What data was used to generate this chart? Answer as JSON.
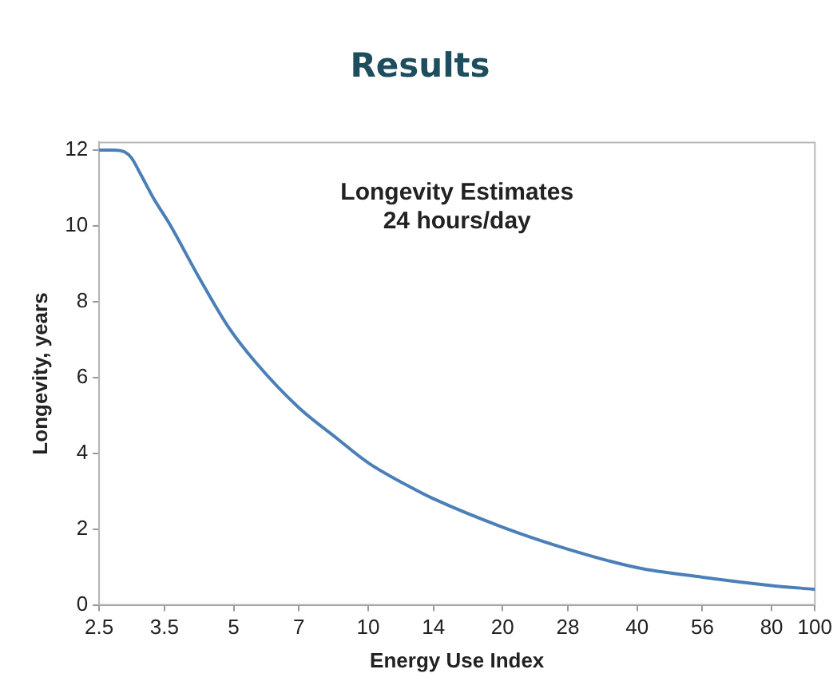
{
  "chart_data": {
    "type": "line",
    "title": "Results",
    "xlabel": "Energy Use Index",
    "ylabel": "Longevity, years",
    "annotations": [
      "Longevity Estimates",
      "24 hours/day"
    ],
    "x": [
      2.5,
      2.7,
      2.85,
      2.95,
      3.1,
      3.3,
      3.59,
      4.2,
      4.86,
      5.6,
      7,
      8.5,
      10,
      12.7,
      14,
      20,
      28,
      40,
      56,
      80,
      100
    ],
    "series": [
      {
        "color": "#4a7fb8",
        "values": [
          12,
          12,
          11.95,
          11.8,
          11.35,
          10.75,
          10.06,
          8.6,
          7.34,
          6.4,
          5.2,
          4.4,
          3.75,
          3.05,
          2.8,
          2.05,
          1.47,
          0.98,
          0.73,
          0.51,
          0.41
        ]
      }
    ],
    "log": "x",
    "xlim": [
      2.5,
      100
    ],
    "xticks": [
      2.5,
      3.5,
      5,
      7,
      10,
      14,
      20,
      28,
      40,
      56,
      80,
      100
    ],
    "ylim": [
      0,
      12.2
    ],
    "yticks": [
      0,
      2,
      4,
      6,
      8,
      10,
      12
    ],
    "grid": false,
    "legend": false,
    "marker": "none",
    "line_style": "solid"
  }
}
